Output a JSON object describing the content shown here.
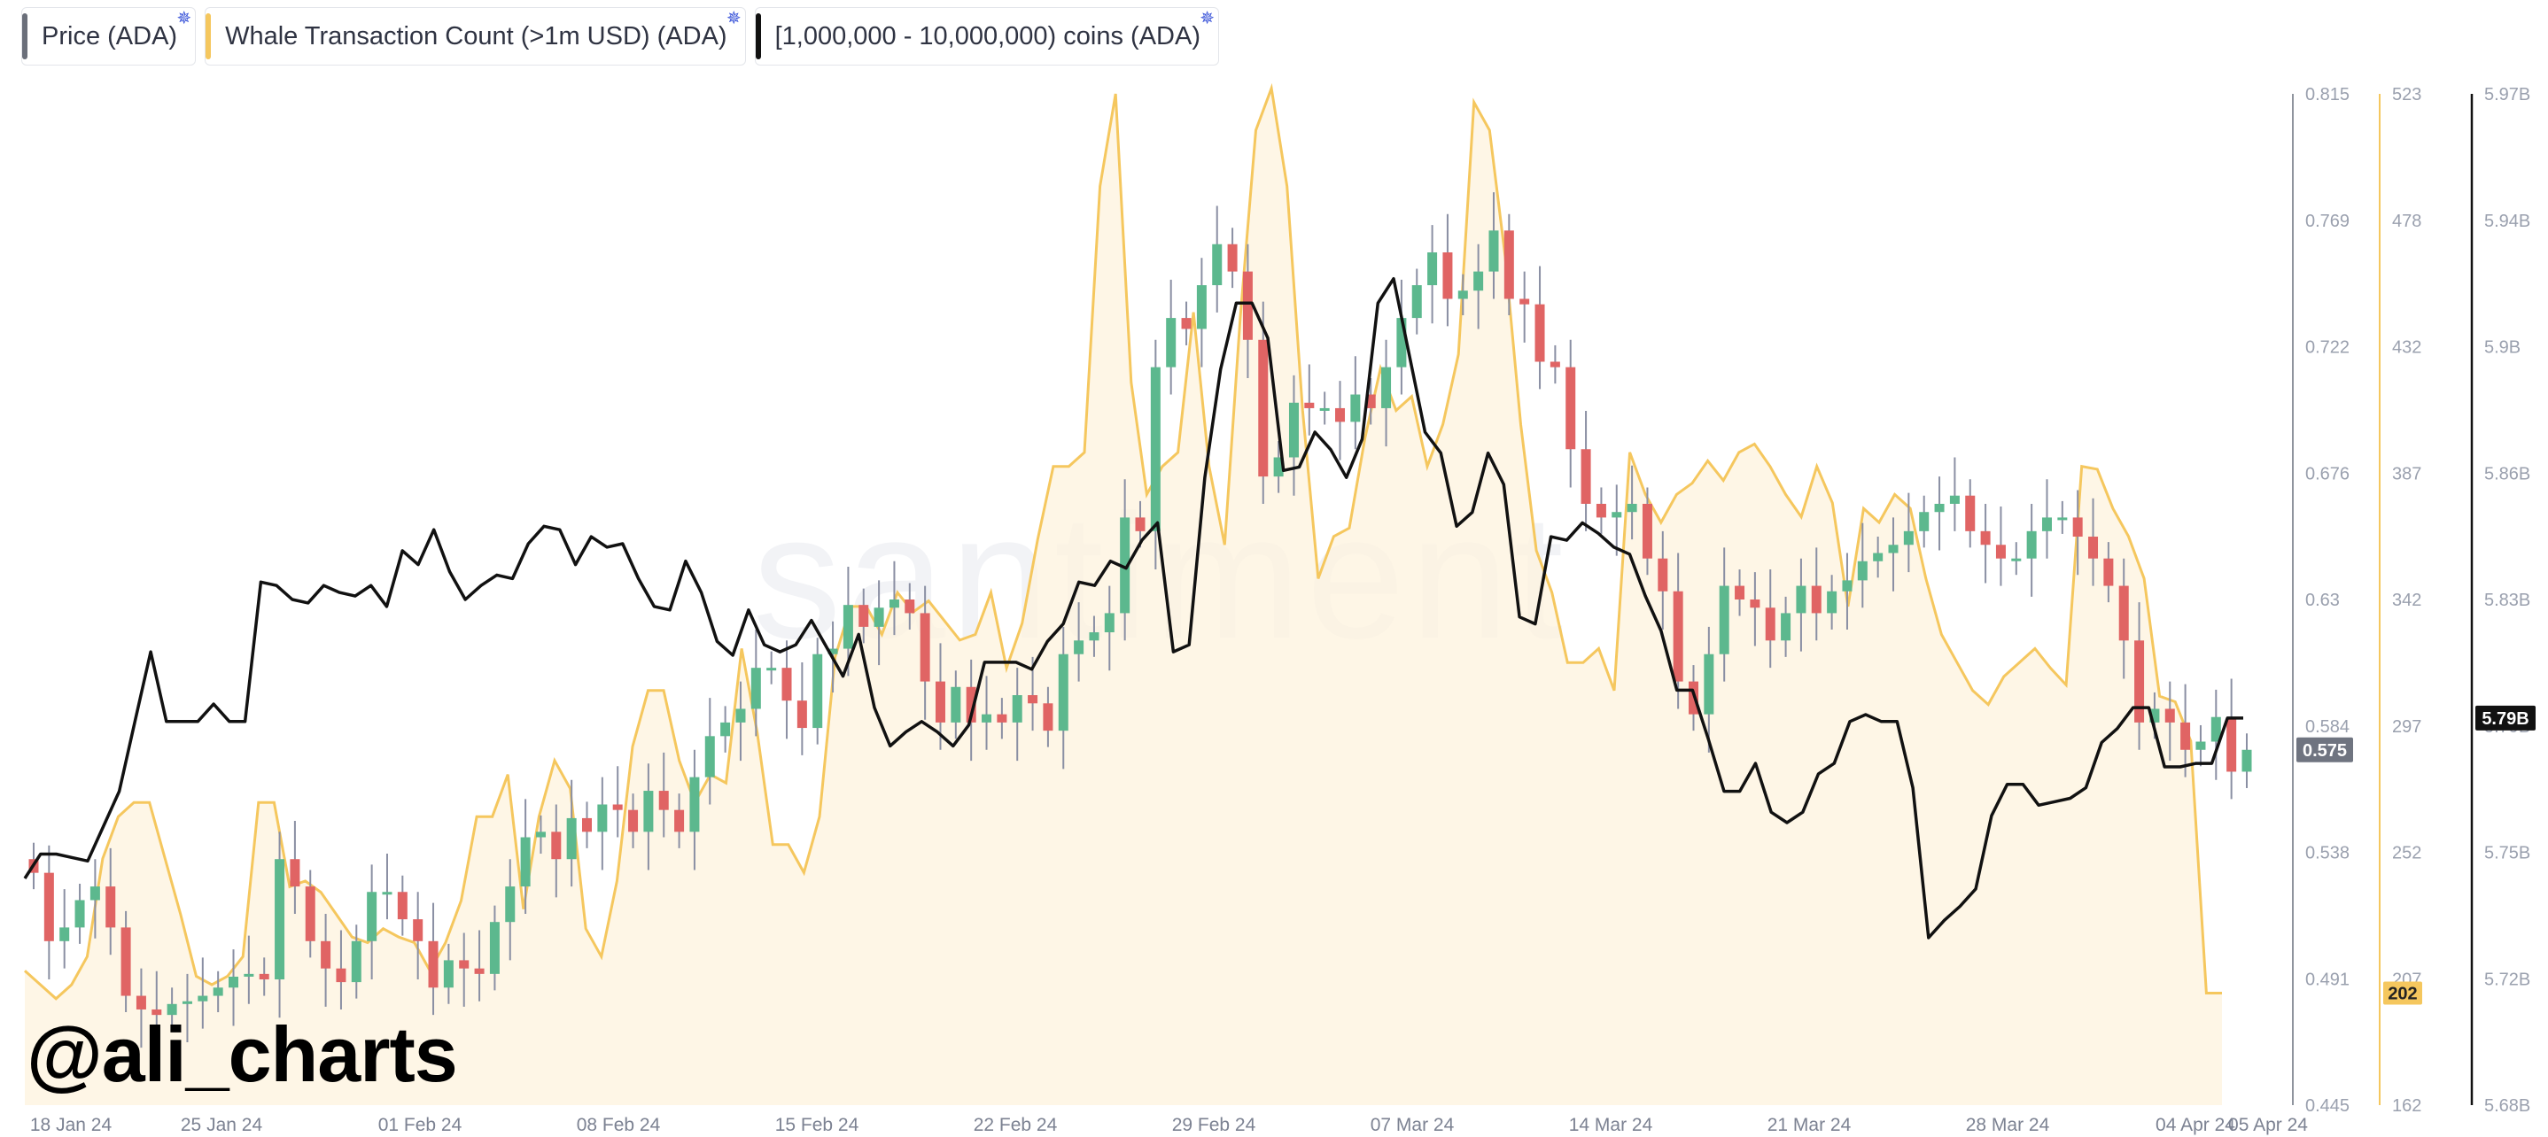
{
  "legend": [
    {
      "label": "Price (ADA)",
      "color": "#6b6f7a",
      "icon": "cardano-icon"
    },
    {
      "label": "Whale Transaction Count (>1m USD) (ADA)",
      "color": "#f5c75e",
      "icon": "cardano-icon"
    },
    {
      "label": "[1,000,000 - 10,000,000) coins (ADA)",
      "color": "#111111",
      "icon": "cardano-icon"
    }
  ],
  "watermark": {
    "handle": "@ali_charts",
    "brand": "santiment"
  },
  "chart_data": {
    "type": "candlestick+line+area",
    "x_ticks": [
      "18 Jan 24",
      "25 Jan 24",
      "01 Feb 24",
      "08 Feb 24",
      "15 Feb 24",
      "22 Feb 24",
      "29 Feb 24",
      "07 Mar 24",
      "14 Mar 24",
      "21 Mar 24",
      "28 Mar 24",
      "04 Apr 24",
      "05 Apr 24"
    ],
    "axes": {
      "price": {
        "ticks": [
          "0.815",
          "0.769",
          "0.722",
          "0.676",
          "0.63",
          "0.584",
          "0.538",
          "0.491",
          "0.445"
        ],
        "range": [
          0.445,
          0.815
        ],
        "current": "0.575"
      },
      "whale": {
        "ticks": [
          "523",
          "478",
          "432",
          "387",
          "342",
          "297",
          "252",
          "207",
          "162"
        ],
        "range": [
          162,
          523
        ],
        "current": "202"
      },
      "holders": {
        "ticks": [
          "5.97B",
          "5.94B",
          "5.9B",
          "5.86B",
          "5.83B",
          "5.79B",
          "5.75B",
          "5.72B",
          "5.68B"
        ],
        "range": [
          5.68,
          5.97
        ],
        "current": "5.79B"
      }
    },
    "colors": {
      "up": "#5cb88e",
      "down": "#e06464",
      "whale_line": "#f5c75e",
      "whale_fill": "#fdf3de",
      "holders_line": "#111111"
    },
    "series": [
      {
        "name": "Price (ADA)",
        "unit": "USD",
        "candles_close": [
          0.53,
          0.505,
          0.51,
          0.52,
          0.525,
          0.51,
          0.485,
          0.48,
          0.478,
          0.482,
          0.483,
          0.485,
          0.488,
          0.492,
          0.493,
          0.491,
          0.535,
          0.525,
          0.505,
          0.495,
          0.49,
          0.505,
          0.523,
          0.523,
          0.513,
          0.505,
          0.488,
          0.498,
          0.495,
          0.493,
          0.512,
          0.525,
          0.543,
          0.545,
          0.535,
          0.55,
          0.545,
          0.555,
          0.553,
          0.545,
          0.56,
          0.553,
          0.545,
          0.565,
          0.58,
          0.585,
          0.59,
          0.605,
          0.605,
          0.593,
          0.583,
          0.61,
          0.612,
          0.628,
          0.62,
          0.627,
          0.63,
          0.625,
          0.6,
          0.585,
          0.598,
          0.585,
          0.588,
          0.585,
          0.595,
          0.592,
          0.582,
          0.61,
          0.615,
          0.618,
          0.625,
          0.66,
          0.655,
          0.715,
          0.733,
          0.729,
          0.745,
          0.76,
          0.75,
          0.725,
          0.675,
          0.682,
          0.702,
          0.7,
          0.7,
          0.695,
          0.705,
          0.7,
          0.715,
          0.733,
          0.745,
          0.757,
          0.74,
          0.743,
          0.75,
          0.765,
          0.74,
          0.738,
          0.717,
          0.715,
          0.685,
          0.665,
          0.66,
          0.662,
          0.665,
          0.645,
          0.633,
          0.6,
          0.588,
          0.61,
          0.635,
          0.63,
          0.627,
          0.615,
          0.625,
          0.635,
          0.625,
          0.633,
          0.637,
          0.644,
          0.647,
          0.65,
          0.655,
          0.662,
          0.665,
          0.668,
          0.655,
          0.65,
          0.645,
          0.645,
          0.655,
          0.66,
          0.66,
          0.653,
          0.645,
          0.635,
          0.615,
          0.585,
          0.59,
          0.585,
          0.575,
          0.578,
          0.587,
          0.567,
          0.575
        ],
        "open_first": 0.535
      },
      {
        "name": "Whale Transaction Count (>1m USD) (ADA)",
        "unit": "count",
        "values": [
          210,
          205,
          200,
          205,
          215,
          250,
          265,
          270,
          270,
          250,
          230,
          208,
          205,
          208,
          215,
          270,
          270,
          240,
          242,
          238,
          230,
          222,
          220,
          225,
          222,
          220,
          210,
          220,
          235,
          265,
          265,
          280,
          232,
          265,
          285,
          275,
          225,
          215,
          242,
          290,
          310,
          310,
          285,
          270,
          280,
          277,
          325,
          295,
          255,
          255,
          245,
          265,
          322,
          340,
          340,
          330,
          345,
          338,
          342,
          335,
          328,
          330,
          345,
          318,
          334,
          364,
          390,
          390,
          395,
          490,
          523,
          420,
          380,
          390,
          395,
          445,
          390,
          362,
          443,
          510,
          525,
          490,
          410,
          350,
          365,
          368,
          400,
          425,
          410,
          415,
          390,
          405,
          430,
          520,
          510,
          465,
          405,
          360,
          345,
          320,
          320,
          325,
          310,
          395,
          380,
          370,
          380,
          384,
          392,
          385,
          395,
          398,
          390,
          380,
          372,
          390,
          377,
          340,
          375,
          370,
          380,
          375,
          350,
          330,
          320,
          310,
          305,
          315,
          320,
          325,
          318,
          312,
          390,
          389,
          375,
          365,
          350,
          308,
          306,
          292,
          202,
          202
        ]
      },
      {
        "name": "[1,000,000 - 10,000,000) coins (ADA)",
        "unit": "coins",
        "values": [
          5.745,
          5.752,
          5.752,
          5.751,
          5.75,
          5.76,
          5.77,
          5.79,
          5.81,
          5.79,
          5.79,
          5.79,
          5.795,
          5.79,
          5.79,
          5.83,
          5.829,
          5.825,
          5.824,
          5.829,
          5.827,
          5.826,
          5.829,
          5.823,
          5.839,
          5.835,
          5.845,
          5.833,
          5.825,
          5.829,
          5.832,
          5.831,
          5.841,
          5.846,
          5.845,
          5.835,
          5.843,
          5.84,
          5.841,
          5.831,
          5.823,
          5.822,
          5.836,
          5.827,
          5.813,
          5.809,
          5.822,
          5.812,
          5.81,
          5.812,
          5.819,
          5.811,
          5.803,
          5.815,
          5.794,
          5.783,
          5.787,
          5.79,
          5.787,
          5.783,
          5.789,
          5.807,
          5.807,
          5.807,
          5.805,
          5.813,
          5.818,
          5.83,
          5.829,
          5.836,
          5.834,
          5.842,
          5.847,
          5.81,
          5.812,
          5.86,
          5.891,
          5.91,
          5.91,
          5.9,
          5.862,
          5.863,
          5.873,
          5.868,
          5.86,
          5.871,
          5.91,
          5.917,
          5.895,
          5.873,
          5.867,
          5.846,
          5.85,
          5.867,
          5.858,
          5.82,
          5.818,
          5.843,
          5.842,
          5.847,
          5.844,
          5.84,
          5.838,
          5.826,
          5.816,
          5.799,
          5.799,
          5.785,
          5.77,
          5.77,
          5.778,
          5.764,
          5.761,
          5.764,
          5.775,
          5.778,
          5.79,
          5.792,
          5.79,
          5.79,
          5.771,
          5.728,
          5.733,
          5.737,
          5.742,
          5.763,
          5.772,
          5.772,
          5.766,
          5.767,
          5.768,
          5.771,
          5.784,
          5.788,
          5.794,
          5.794,
          5.777,
          5.777,
          5.778,
          5.778,
          5.791,
          5.791
        ]
      }
    ]
  }
}
